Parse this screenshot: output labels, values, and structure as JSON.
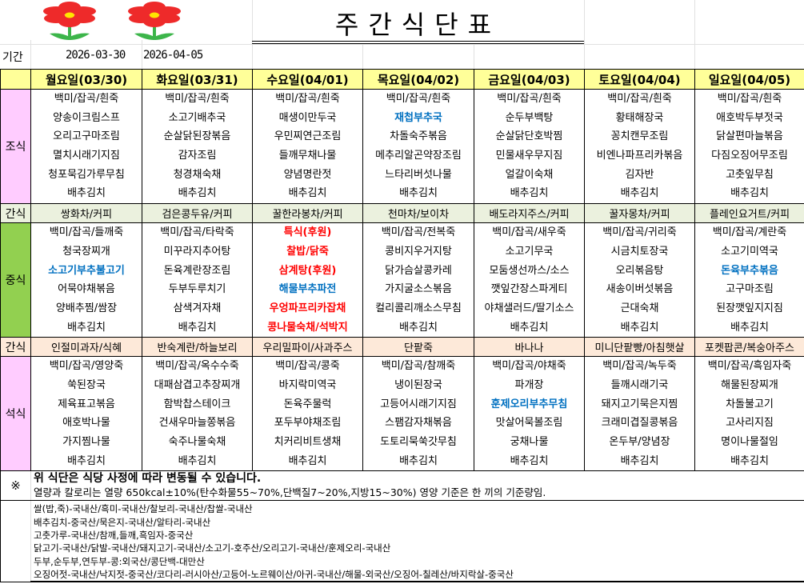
{
  "header": {
    "title": "주간식단표",
    "period_label": "기간",
    "start_date": "2026-03-30",
    "end_date": "2026-04-05"
  },
  "meal_labels": {
    "breakfast": "조식",
    "snack1": "간식",
    "lunch": "중식",
    "snack2": "간식",
    "dinner": "석식"
  },
  "colors": {
    "header": "#ffff99",
    "breakfast_label": "#ffccff",
    "lunch_label": "#92d050",
    "dinner_label": "#ffccff",
    "snack1": "#ebf1de",
    "snack2": "#fde9d9",
    "highlight_blue": "#0070c0",
    "highlight_red": "#ff0000"
  },
  "days": [
    {
      "label": "월요일(03/30)",
      "breakfast": [
        {
          "t": "백미/잡곡/흰죽"
        },
        {
          "t": "양송이크림스프"
        },
        {
          "t": "오리고구마조림"
        },
        {
          "t": "멸치시래기지짐"
        },
        {
          "t": "청포묵김가루무침"
        },
        {
          "t": "배추김치"
        }
      ],
      "snack1": "쌍화차/커피",
      "lunch": [
        {
          "t": "백미/잡곡/들깨죽"
        },
        {
          "t": "청국장찌개"
        },
        {
          "t": "소고기부추불고기",
          "c": "blue"
        },
        {
          "t": "어묵야채볶음"
        },
        {
          "t": "양배추찜/쌈장"
        },
        {
          "t": "배추김치"
        }
      ],
      "snack2": "인절미과자/식혜",
      "dinner": [
        {
          "t": "백미/잡곡/영양죽"
        },
        {
          "t": "쑥된장국"
        },
        {
          "t": "제육표고볶음"
        },
        {
          "t": "애호박나물"
        },
        {
          "t": "가지찜나물"
        },
        {
          "t": "배추김치"
        }
      ]
    },
    {
      "label": "화요일(03/31)",
      "breakfast": [
        {
          "t": "백미/잡곡/흰죽"
        },
        {
          "t": "소고기배추국"
        },
        {
          "t": "순살닭된장볶음"
        },
        {
          "t": "감자조림"
        },
        {
          "t": "청경채숙채"
        },
        {
          "t": "배추김치"
        }
      ],
      "snack1": "검은콩두유/커피",
      "lunch": [
        {
          "t": "백미/잡곡/타락죽"
        },
        {
          "t": "미꾸라지추어탕"
        },
        {
          "t": "돈육계란장조림"
        },
        {
          "t": "두부두루치기"
        },
        {
          "t": "삼색겨자채"
        },
        {
          "t": "배추김치"
        }
      ],
      "snack2": "반숙계란/하늘보리",
      "dinner": [
        {
          "t": "백미/잡곡/옥수수죽"
        },
        {
          "t": "대패삼겹고추장찌개"
        },
        {
          "t": "함박찹스테이크"
        },
        {
          "t": "건새우마늘쫑볶음"
        },
        {
          "t": "숙주나물숙채"
        },
        {
          "t": "배추김치"
        }
      ]
    },
    {
      "label": "수요일(04/01)",
      "breakfast": [
        {
          "t": "백미/잡곡/흰죽"
        },
        {
          "t": "매생이만두국"
        },
        {
          "t": "우민찌연근조림"
        },
        {
          "t": "들깨무채나물"
        },
        {
          "t": "양념명란젓"
        },
        {
          "t": "배추김치"
        }
      ],
      "snack1": "꿀한라봉차/커피",
      "lunch": [
        {
          "t": "특식(후원)",
          "c": "red"
        },
        {
          "t": "찰밥/닭죽",
          "c": "red"
        },
        {
          "t": "삼계탕(후원)",
          "c": "red"
        },
        {
          "t": "해물부추파전",
          "c": "blue"
        },
        {
          "t": "우엉파프리카잡채",
          "c": "red"
        },
        {
          "t": "콩나물숙채/석박지",
          "c": "red"
        }
      ],
      "snack2": "우리밀파이/사과주스",
      "dinner": [
        {
          "t": "백미/잡곡/콩죽"
        },
        {
          "t": "바지락미역국"
        },
        {
          "t": "돈육주물럭"
        },
        {
          "t": "포두부야채조림"
        },
        {
          "t": "치커리비트생채"
        },
        {
          "t": "배추김치"
        }
      ]
    },
    {
      "label": "목요일(04/02)",
      "breakfast": [
        {
          "t": "백미/잡곡/흰죽"
        },
        {
          "t": "재첩부추국",
          "c": "blue"
        },
        {
          "t": "차돌숙주볶음"
        },
        {
          "t": "메추리알곤약장조림"
        },
        {
          "t": "느타리버섯나물"
        },
        {
          "t": "배추김치"
        }
      ],
      "snack1": "천마차/보이차",
      "lunch": [
        {
          "t": "백미/잡곡/전복죽"
        },
        {
          "t": "콩비지우거지탕"
        },
        {
          "t": "닭가슴살콩카레"
        },
        {
          "t": "가지굴소스볶음"
        },
        {
          "t": "컬리콜리깨소스무침"
        },
        {
          "t": "배추김치"
        }
      ],
      "snack2": "단팥죽",
      "dinner": [
        {
          "t": "백미/잡곡/참깨죽"
        },
        {
          "t": "냉이된장국"
        },
        {
          "t": "고등어시래기지짐"
        },
        {
          "t": "스팸감자채볶음"
        },
        {
          "t": "도토리묵쑥갓무침"
        },
        {
          "t": "배추김치"
        }
      ]
    },
    {
      "label": "금요일(04/03)",
      "breakfast": [
        {
          "t": "백미/잡곡/흰죽"
        },
        {
          "t": "순두부백탕"
        },
        {
          "t": "순살닭단호박찜"
        },
        {
          "t": "민물새우무지짐"
        },
        {
          "t": "얼갈이숙채"
        },
        {
          "t": "배추김치"
        }
      ],
      "snack1": "배도라지주스/커피",
      "lunch": [
        {
          "t": "백미/잡곡/새우죽"
        },
        {
          "t": "소고기무국"
        },
        {
          "t": "모둠생선까스/소스"
        },
        {
          "t": "깻잎간장스파게티"
        },
        {
          "t": "야채샐러드/딸기소스"
        },
        {
          "t": "배추김치"
        }
      ],
      "snack2": "바나나",
      "dinner": [
        {
          "t": "백미/잡곡/야채죽"
        },
        {
          "t": "파개장"
        },
        {
          "t": "훈제오리부추무침",
          "c": "blue"
        },
        {
          "t": "맛살어묵볼조림"
        },
        {
          "t": "궁채나물"
        },
        {
          "t": "배추김치"
        }
      ]
    },
    {
      "label": "토요일(04/04)",
      "breakfast": [
        {
          "t": "백미/잡곡/흰죽"
        },
        {
          "t": "황태해장국"
        },
        {
          "t": "꽁치캔무조림"
        },
        {
          "t": "비엔나파프리카볶음"
        },
        {
          "t": "김자반"
        },
        {
          "t": "배추김치"
        }
      ],
      "snack1": "꿀자몽차/커피",
      "lunch": [
        {
          "t": "백미/잡곡/귀리죽"
        },
        {
          "t": "시금치토장국"
        },
        {
          "t": "오리볶음탕"
        },
        {
          "t": "새송이버섯볶음"
        },
        {
          "t": "근대숙채"
        },
        {
          "t": "배추김치"
        }
      ],
      "snack2": "미니단팥빵/아침햇살",
      "dinner": [
        {
          "t": "백미/잡곡/녹두죽"
        },
        {
          "t": "들깨시래기국"
        },
        {
          "t": "돼지고기묵은지찜"
        },
        {
          "t": "크래미겹질콩볶음"
        },
        {
          "t": "온두부/양념장"
        },
        {
          "t": "배추김치"
        }
      ]
    },
    {
      "label": "일요일(04/05)",
      "breakfast": [
        {
          "t": "백미/잡곡/흰죽"
        },
        {
          "t": "애호박두부젓국"
        },
        {
          "t": "닭살편마늘볶음"
        },
        {
          "t": "다짐오징어무조림"
        },
        {
          "t": "고춧잎무침"
        },
        {
          "t": "배추김치"
        }
      ],
      "snack1": "플레인요거트/커피",
      "lunch": [
        {
          "t": "백미/잡곡/계란죽"
        },
        {
          "t": "소고기미역국"
        },
        {
          "t": "돈육부추볶음",
          "c": "blue"
        },
        {
          "t": "고구마조림"
        },
        {
          "t": "된장깻잎지지짐"
        },
        {
          "t": "배추김치"
        }
      ],
      "snack2": "포켓팝콘/복숭아주스",
      "dinner": [
        {
          "t": "백미/잡곡/흑임자죽"
        },
        {
          "t": "해물된장찌개"
        },
        {
          "t": "차돌불고기"
        },
        {
          "t": "고사리지짐"
        },
        {
          "t": "명이나물절임"
        },
        {
          "t": "배추김치"
        }
      ]
    }
  ],
  "notes": {
    "mark": "※",
    "line1": "위 식단은 식당 사정에 따라 변동될 수 있습니다.",
    "line2": "열량과 칼로리는 열량 650kcal±10%(탄수화물55~70%,단백질7~20%,지방15~30%) 영양 기준은 한 끼의 기준량임."
  },
  "origin": [
    "쌀(밥,죽)-국내산/흑미-국내산/찰보리-국내산/찹쌀-국내산",
    "배추김치-중국산/묵은지-국내산/알타리-국내산",
    "고춧가루-국내산/참깨,들깨,흑임자-중국산",
    "닭고기-국내산/닭발-국내산/돼지고기-국내산/소고기-호주산/오리고기-국내산/훈제오리-국내산",
    "두부,순두부,연두부-콩:외국산/콩단백-대만산",
    "오징어젓-국내산/낙지젓-중국산/코다리-러시아산/고등어-노르웨이산/아귀-국내산/해물-외국산/오징어-칠레산/바지락살-중국산"
  ]
}
